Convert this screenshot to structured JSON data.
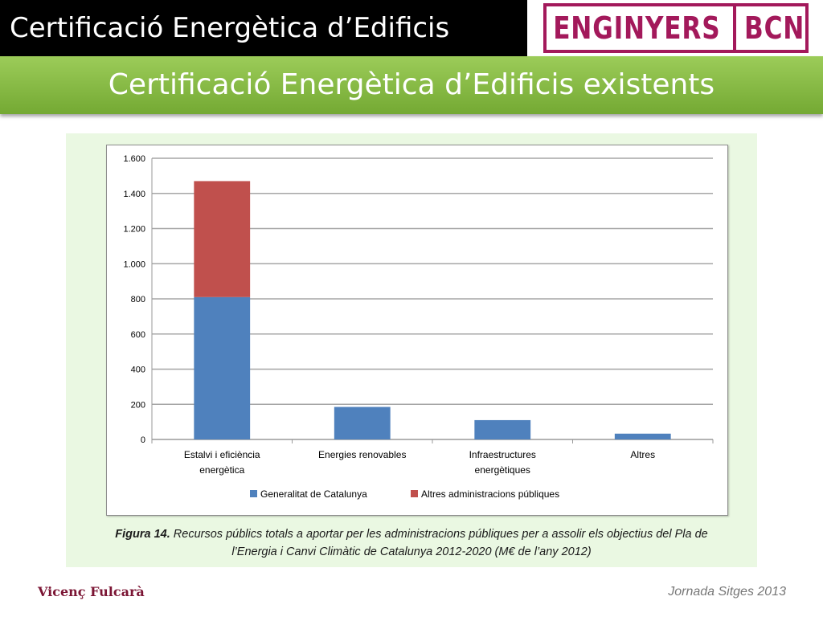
{
  "header": {
    "title": "Certificació Energètica d’Edificis",
    "logo_left": "ENGINYERS",
    "logo_right": "BCN",
    "brand_color": "#a3195b"
  },
  "banner": {
    "title": "Certificació Energètica d’Edificis existents"
  },
  "chart_data": {
    "type": "bar",
    "stacked": true,
    "categories": [
      [
        "Estalvi i eficiència",
        "energètica"
      ],
      [
        "Energies renovables"
      ],
      [
        "Infraestructures",
        "energètiques"
      ],
      [
        "Altres"
      ]
    ],
    "series": [
      {
        "name": "Generalitat de Catalunya",
        "color": "#4f81bd",
        "values": [
          810,
          185,
          110,
          33
        ]
      },
      {
        "name": "Altres administracions públiques",
        "color": "#c0504d",
        "values": [
          660,
          0,
          0,
          0
        ]
      }
    ],
    "ylim": [
      0,
      1600
    ],
    "yticks": [
      0,
      200,
      400,
      600,
      800,
      1000,
      1200,
      1400,
      1600
    ],
    "ytick_labels": [
      "0",
      "200",
      "400",
      "600",
      "800",
      "1.000",
      "1.200",
      "1.400",
      "1.600"
    ],
    "grid": true,
    "legend": "bottom",
    "xlabel": "",
    "ylabel": ""
  },
  "caption": {
    "figure_label": "Figura 14.",
    "line1": "Recursos públics totals a aportar per les administracions públiques per a assolir els objectius del Pla de",
    "line2": "l’Energia i Canvi Climàtic de Catalunya 2012-2020 (M€ de l’any 2012)"
  },
  "footer": {
    "author": "Vicenç Fulcarà",
    "event": "Jornada Sitges 2013"
  }
}
